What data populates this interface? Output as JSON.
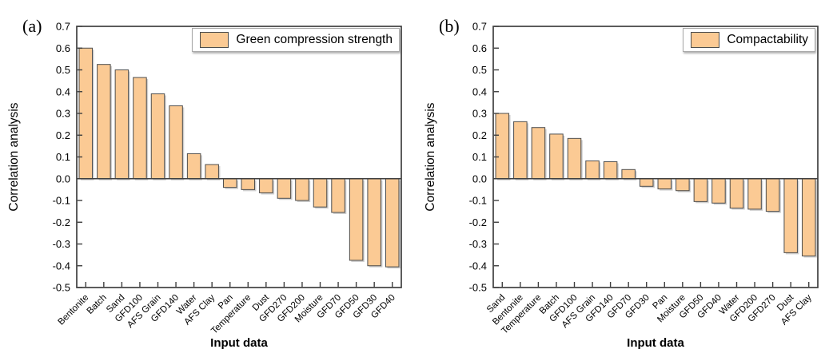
{
  "figure": {
    "background": "#ffffff",
    "colors": {
      "bar_fill": "#FBCA94",
      "bar_stroke": "#4d4d4d",
      "bar_shadow": "#a8a8a8",
      "axis": "#3f3f3f",
      "text": "#000000",
      "legend_border": "#a9a9a9"
    }
  },
  "chart_data": [
    {
      "type": "bar",
      "panel_label": "(a)",
      "legend": "Green compression strength",
      "legend_position": "top-right",
      "xlabel": "Input data",
      "ylabel": "Correlation analysis",
      "ylim": [
        -0.5,
        0.7
      ],
      "grid": false,
      "yticks": [
        "0.7",
        "0.6",
        "0.5",
        "0.4",
        "0.3",
        "0.2",
        "0.1",
        "0.0",
        "-0.1",
        "-0.2",
        "-0.3",
        "-0.4",
        "-0.5"
      ],
      "categories": [
        "Bentonite",
        "Batch",
        "Sand",
        "GFD100",
        "AFS Grain",
        "GFD140",
        "Water",
        "AFS Clay",
        "Pan",
        "Temperature",
        "Dust",
        "GFD270",
        "GFD200",
        "Moisture",
        "GFD70",
        "GFD50",
        "GFD30",
        "GFD40"
      ],
      "values": [
        0.6,
        0.525,
        0.5,
        0.465,
        0.39,
        0.335,
        0.115,
        0.065,
        -0.04,
        -0.05,
        -0.065,
        -0.09,
        -0.1,
        -0.13,
        -0.155,
        -0.375,
        -0.4,
        -0.405
      ]
    },
    {
      "type": "bar",
      "panel_label": "(b)",
      "legend": "Compactability",
      "legend_position": "top-right",
      "xlabel": "Input data",
      "ylabel": "Correlation analysis",
      "ylim": [
        -0.5,
        0.7
      ],
      "grid": false,
      "yticks": [
        "0.7",
        "0.6",
        "0.5",
        "0.4",
        "0.3",
        "0.2",
        "0.1",
        "0.0",
        "-0.1",
        "-0.2",
        "-0.3",
        "-0.4",
        "-0.5"
      ],
      "categories": [
        "Sand",
        "Bentonite",
        "Temperature",
        "Batch",
        "GFD100",
        "AFS Grain",
        "GFD140",
        "GFD70",
        "GFD30",
        "Pan",
        "Moisture",
        "GFD50",
        "GFD40",
        "Water",
        "GFD200",
        "GFD270",
        "Dust",
        "AFS Clay"
      ],
      "values": [
        0.3,
        0.262,
        0.235,
        0.205,
        0.185,
        0.082,
        0.078,
        0.042,
        -0.035,
        -0.047,
        -0.055,
        -0.105,
        -0.112,
        -0.135,
        -0.14,
        -0.15,
        -0.34,
        -0.355
      ]
    }
  ]
}
